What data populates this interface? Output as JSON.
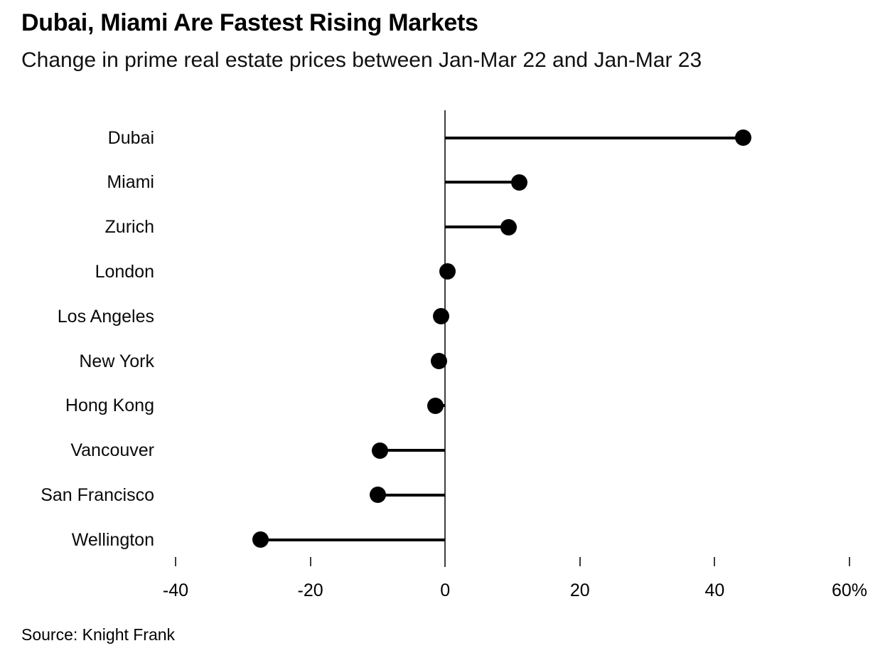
{
  "header": {
    "title": "Dubai, Miami Are Fastest Rising Markets",
    "subtitle": "Change in prime real estate prices between Jan-Mar 22 and Jan-Mar 23"
  },
  "footer": {
    "source": "Source: Knight Frank"
  },
  "chart_data": {
    "type": "bar",
    "variant": "horizontal-lollipop",
    "title": "Dubai, Miami Are Fastest Rising Markets",
    "subtitle": "Change in prime real estate prices between Jan-Mar 22 and Jan-Mar 23",
    "source": "Source: Knight Frank",
    "categories": [
      "Dubai",
      "Miami",
      "Zurich",
      "London",
      "Los Angeles",
      "New York",
      "Hong Kong",
      "Vancouver",
      "San Francisco",
      "Wellington"
    ],
    "values": [
      44.2,
      11.0,
      9.4,
      0.4,
      -0.6,
      -0.9,
      -1.4,
      -9.7,
      -10.0,
      -27.4
    ],
    "unit": "%",
    "xlabel": "",
    "ylabel": "",
    "xlim": [
      -46,
      62
    ],
    "x_ticks": [
      -40,
      -20,
      0,
      20,
      40,
      60
    ],
    "x_tick_labels": [
      "-40",
      "-20",
      "0",
      "20",
      "40",
      "60%"
    ],
    "grid": false,
    "legend": "none",
    "colors": {
      "dot": "#000000",
      "stem": "#000000",
      "axis": "#3d3d3d",
      "text": "#000000",
      "background": "#ffffff"
    }
  }
}
